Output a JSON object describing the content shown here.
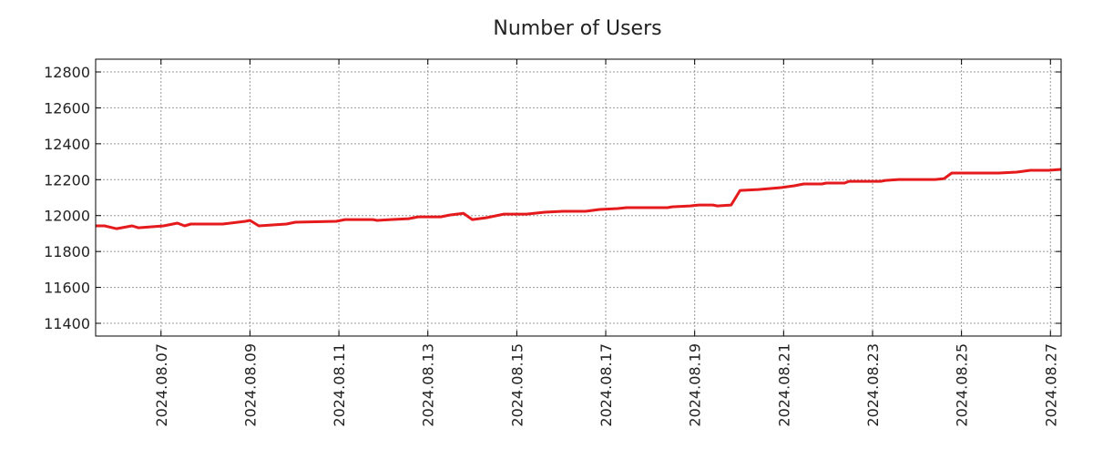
{
  "chart_data": {
    "type": "line",
    "title": "Number of Users",
    "xlabel": "",
    "ylabel": "",
    "xlim": [
      5.53,
      27.24
    ],
    "ylim": [
      11329,
      12871
    ],
    "grid": true,
    "line_color": "#e41a1c",
    "x_ticks": [
      {
        "value": 7,
        "label": "2024.08.07"
      },
      {
        "value": 9,
        "label": "2024.08.09"
      },
      {
        "value": 11,
        "label": "2024.08.11"
      },
      {
        "value": 13,
        "label": "2024.08.13"
      },
      {
        "value": 15,
        "label": "2024.08.15"
      },
      {
        "value": 17,
        "label": "2024.08.17"
      },
      {
        "value": 19,
        "label": "2024.08.19"
      },
      {
        "value": 21,
        "label": "2024.08.21"
      },
      {
        "value": 23,
        "label": "2024.08.23"
      },
      {
        "value": 25,
        "label": "2024.08.25"
      },
      {
        "value": 27,
        "label": "2024.08.27"
      }
    ],
    "y_ticks": [
      {
        "value": 11400,
        "label": "11400"
      },
      {
        "value": 11600,
        "label": "11600"
      },
      {
        "value": 11800,
        "label": "11800"
      },
      {
        "value": 12000,
        "label": "12000"
      },
      {
        "value": 12200,
        "label": "12200"
      },
      {
        "value": 12400,
        "label": "12400"
      },
      {
        "value": 12600,
        "label": "12600"
      },
      {
        "value": 12800,
        "label": "12800"
      }
    ],
    "series": [
      {
        "name": "Number of Users",
        "x": [
          5.53,
          5.73,
          6.0,
          6.35,
          6.49,
          6.76,
          7.06,
          7.37,
          7.53,
          7.67,
          8.39,
          8.9,
          9.0,
          9.2,
          9.51,
          9.82,
          10.02,
          10.94,
          11.14,
          11.76,
          11.86,
          12.16,
          12.57,
          12.78,
          13.29,
          13.49,
          13.8,
          14.0,
          14.31,
          14.51,
          14.71,
          15.22,
          15.63,
          16.04,
          16.55,
          16.86,
          17.27,
          17.47,
          18.39,
          18.49,
          18.9,
          19.1,
          19.41,
          19.51,
          19.82,
          20.02,
          20.43,
          20.94,
          21.24,
          21.45,
          21.86,
          21.96,
          22.37,
          22.47,
          23.18,
          23.29,
          23.59,
          24.41,
          24.61,
          24.78,
          25.84,
          26.24,
          26.55,
          26.96,
          27.24
        ],
        "y": [
          11943,
          11943,
          11927,
          11943,
          11932,
          11937,
          11943,
          11958,
          11943,
          11953,
          11953,
          11968,
          11973,
          11943,
          11948,
          11953,
          11963,
          11968,
          11978,
          11978,
          11973,
          11978,
          11983,
          11993,
          11993,
          12003,
          12013,
          11978,
          11988,
          11998,
          12008,
          12008,
          12019,
          12024,
          12024,
          12034,
          12039,
          12044,
          12044,
          12049,
          12054,
          12059,
          12059,
          12054,
          12059,
          12140,
          12145,
          12156,
          12166,
          12176,
          12176,
          12181,
          12181,
          12191,
          12191,
          12196,
          12201,
          12201,
          12206,
          12237,
          12237,
          12242,
          12252,
          12252,
          12257
        ]
      }
    ]
  }
}
